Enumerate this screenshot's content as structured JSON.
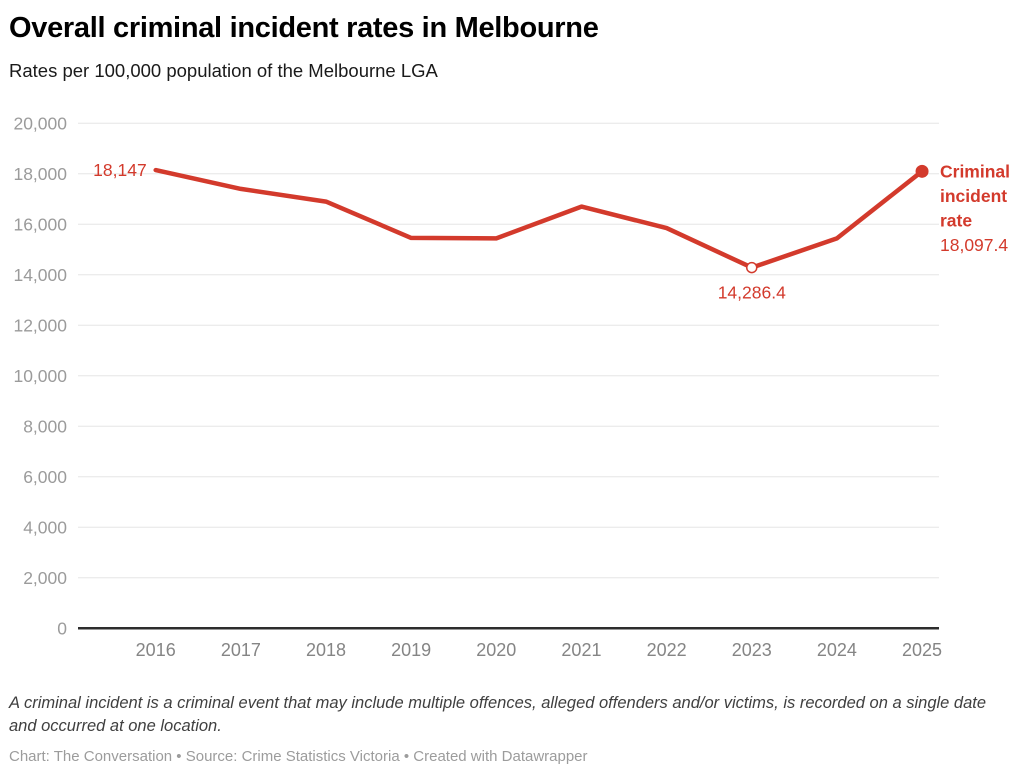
{
  "footer": {
    "note": "A criminal incident is a criminal event that may include multiple offences, alleged offenders and/or victims, is recorded on a single date and occurred at one location.",
    "credit": "Chart: The Conversation • Source: Crime Statistics Victoria • Created with Datawrapper"
  },
  "colors": {
    "line": "#d33a2c",
    "value_label": "#d33a2c",
    "grid": "#e5e5e5",
    "baseline": "#2d2d2d",
    "y_tick_label": "#9b9b9b",
    "x_tick_label": "#858585",
    "marker_fill": "#ffffff"
  },
  "chart_data": {
    "type": "line",
    "title": "Overall criminal incident rates in Melbourne",
    "subtitle": "Rates per 100,000 population of the Melbourne LGA",
    "x": [
      "2016",
      "2017",
      "2018",
      "2019",
      "2020",
      "2021",
      "2022",
      "2023",
      "2024",
      "2025"
    ],
    "series": [
      {
        "name": "Criminal incident rate",
        "values": [
          18147,
          17400,
          16900,
          15460,
          15440,
          16700,
          15850,
          14286.4,
          15440,
          18097.4
        ]
      }
    ],
    "ylim": [
      0,
      20000
    ],
    "grid": "horizontal-only",
    "legend_position": "end-of-line-right",
    "yticks": [
      {
        "v": 0,
        "label": "0"
      },
      {
        "v": 2000,
        "label": "2,000"
      },
      {
        "v": 4000,
        "label": "4,000"
      },
      {
        "v": 6000,
        "label": "6,000"
      },
      {
        "v": 8000,
        "label": "8,000"
      },
      {
        "v": 10000,
        "label": "10,000"
      },
      {
        "v": 12000,
        "label": "12,000"
      },
      {
        "v": 14000,
        "label": "14,000"
      },
      {
        "v": 16000,
        "label": "16,000"
      },
      {
        "v": 18000,
        "label": "18,000"
      },
      {
        "v": 20000,
        "label": "20,000"
      }
    ],
    "annotations": {
      "start_label": {
        "index": 0,
        "text": "18,147"
      },
      "min_label": {
        "index": 7,
        "text": "14,286.4",
        "marker": "open-circle"
      },
      "end_label": {
        "index": 9,
        "lines": [
          "Criminal",
          "incident",
          "rate"
        ],
        "value_text": "18,097.4",
        "marker": "filled-dot"
      }
    }
  }
}
